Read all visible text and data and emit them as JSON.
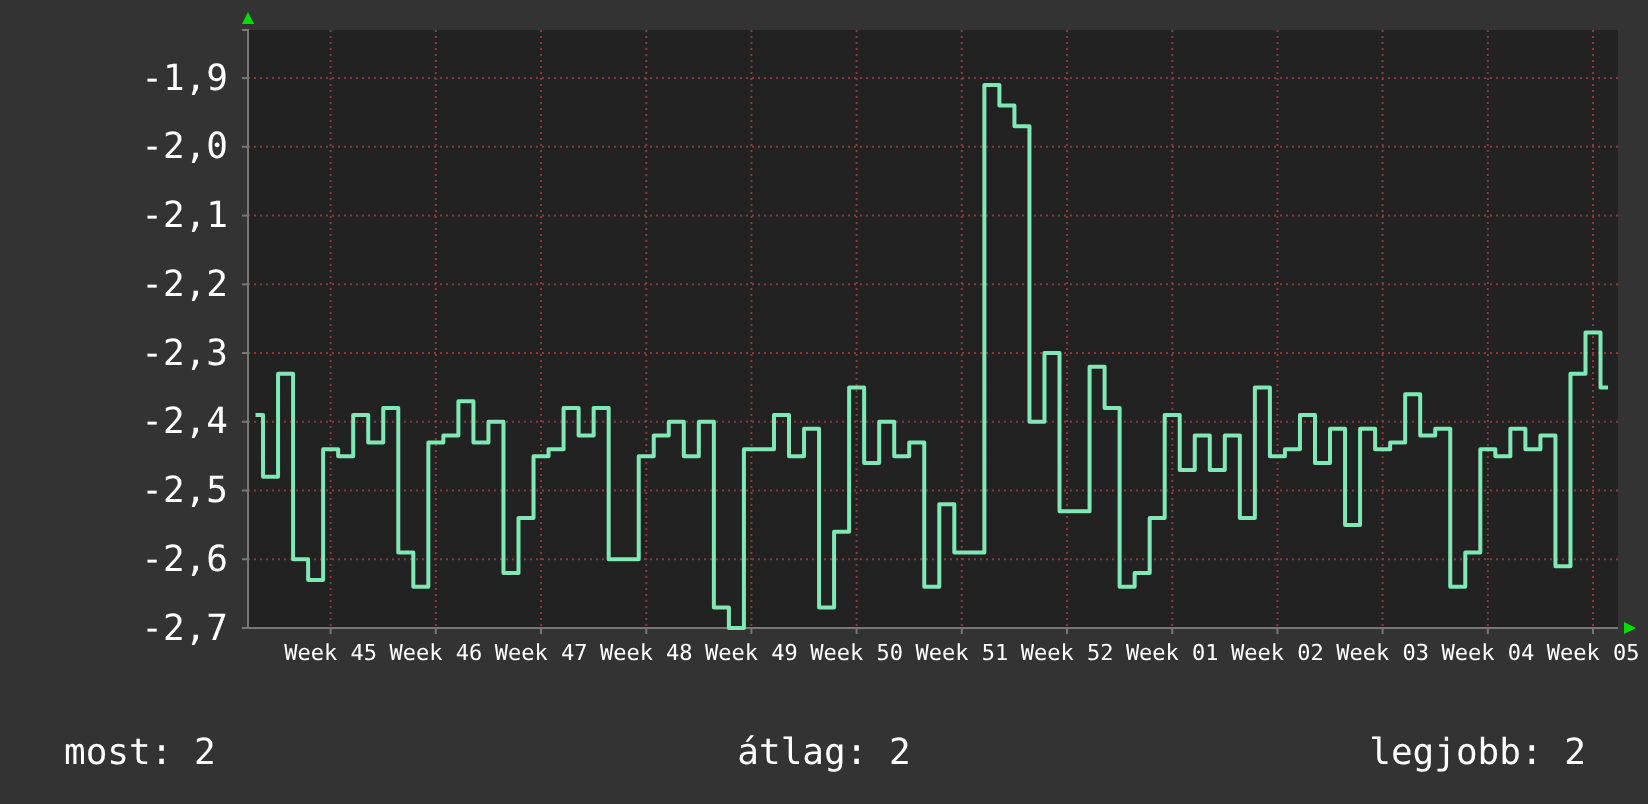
{
  "chart_data": {
    "type": "step",
    "categories": [
      null,
      null,
      null,
      null,
      null,
      "Week 45",
      null,
      null,
      null,
      null,
      null,
      null,
      "Week 46",
      null,
      null,
      null,
      null,
      null,
      null,
      "Week 47",
      null,
      null,
      null,
      null,
      null,
      null,
      "Week 48",
      null,
      null,
      null,
      null,
      null,
      null,
      "Week 49",
      null,
      null,
      null,
      null,
      null,
      null,
      "Week 50",
      null,
      null,
      null,
      null,
      null,
      null,
      "Week 51",
      null,
      null,
      null,
      null,
      null,
      null,
      "Week 52",
      null,
      null,
      null,
      null,
      null,
      null,
      "Week 01",
      null,
      null,
      null,
      null,
      null,
      null,
      "Week 02",
      null,
      null,
      null,
      null,
      null,
      null,
      "Week 03",
      null,
      null,
      null,
      null,
      null,
      null,
      "Week 04",
      null,
      null,
      null,
      null,
      null,
      null,
      "Week 05",
      null
    ],
    "series": [
      {
        "color": "#7fe8b4",
        "values": [
          -2.39,
          -2.48,
          -2.33,
          -2.6,
          -2.63,
          -2.44,
          -2.45,
          -2.39,
          -2.43,
          -2.38,
          -2.59,
          -2.64,
          -2.43,
          -2.42,
          -2.37,
          -2.43,
          -2.4,
          -2.62,
          -2.54,
          -2.45,
          -2.44,
          -2.38,
          -2.42,
          -2.38,
          -2.6,
          -2.6,
          -2.45,
          -2.42,
          -2.4,
          -2.45,
          -2.4,
          -2.67,
          -2.7,
          -2.44,
          -2.44,
          -2.39,
          -2.45,
          -2.41,
          -2.67,
          -2.56,
          -2.35,
          -2.46,
          -2.4,
          -2.45,
          -2.43,
          -2.64,
          -2.52,
          -2.59,
          -2.59,
          -1.91,
          -1.94,
          -1.97,
          -2.4,
          -2.3,
          -2.53,
          -2.53,
          -2.32,
          -2.38,
          -2.64,
          -2.62,
          -2.54,
          -2.39,
          -2.47,
          -2.42,
          -2.47,
          -2.42,
          -2.54,
          -2.35,
          -2.45,
          -2.44,
          -2.39,
          -2.46,
          -2.41,
          -2.55,
          -2.41,
          -2.44,
          -2.43,
          -2.36,
          -2.42,
          -2.41,
          -2.64,
          -2.59,
          -2.44,
          -2.45,
          -2.41,
          -2.44,
          -2.42,
          -2.61,
          -2.33,
          -2.27,
          -2.35
        ]
      }
    ],
    "ylim": [
      -2.7,
      -1.83
    ],
    "yticks": [
      {
        "value": -2.7,
        "label": "-2,7"
      },
      {
        "value": -2.6,
        "label": "-2,6"
      },
      {
        "value": -2.5,
        "label": "-2,5"
      },
      {
        "value": -2.4,
        "label": "-2,4"
      },
      {
        "value": -2.3,
        "label": "-2,3"
      },
      {
        "value": -2.2,
        "label": "-2,2"
      },
      {
        "value": -2.1,
        "label": "-2,1"
      },
      {
        "value": -2.0,
        "label": "-2,0"
      },
      {
        "value": -1.9,
        "label": "-1,9"
      }
    ],
    "grid": true,
    "annotations": [
      "most: 2",
      "átlag: 2",
      "legjobb: 2"
    ]
  }
}
